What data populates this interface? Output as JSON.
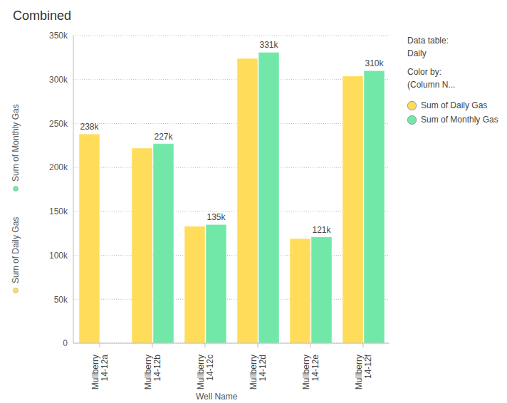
{
  "chart_data": {
    "type": "bar",
    "title": "Combined",
    "xlabel": "Well Name",
    "categories": [
      "Mullberry 14-12a",
      "Mullberry 14-12b",
      "Mullberry 14-12c",
      "Mullberry 14-12d",
      "Mullberry 14-12e",
      "Mullberry 14-12f"
    ],
    "series": [
      {
        "name": "Sum of Daily Gas",
        "color": "#FFDC5A",
        "values": [
          238000,
          222000,
          133000,
          324000,
          119000,
          304000
        ],
        "value_labels": [
          "238k",
          null,
          null,
          null,
          null,
          null
        ]
      },
      {
        "name": "Sum of Monthly Gas",
        "color": "#72E8A8",
        "values": [
          null,
          227000,
          135000,
          331000,
          121000,
          310000
        ],
        "value_labels": [
          null,
          "227k",
          "135k",
          "331k",
          "121k",
          "310k"
        ]
      }
    ],
    "ylim": [
      0,
      350000
    ],
    "yticks": [
      0,
      {
        "value": 50000,
        "label": "50k"
      },
      {
        "value": 100000,
        "label": "100k"
      },
      {
        "value": 150000,
        "label": "150k"
      },
      {
        "value": 200000,
        "label": "200k"
      },
      {
        "value": 250000,
        "label": "250k"
      },
      {
        "value": 300000,
        "label": "300k"
      },
      {
        "value": 350000,
        "label": "350k"
      }
    ],
    "grid": true,
    "legend": "right",
    "data_labels": true,
    "annotations": [
      "Data table:",
      "Daily",
      "Color by:",
      "(Column N..."
    ]
  }
}
